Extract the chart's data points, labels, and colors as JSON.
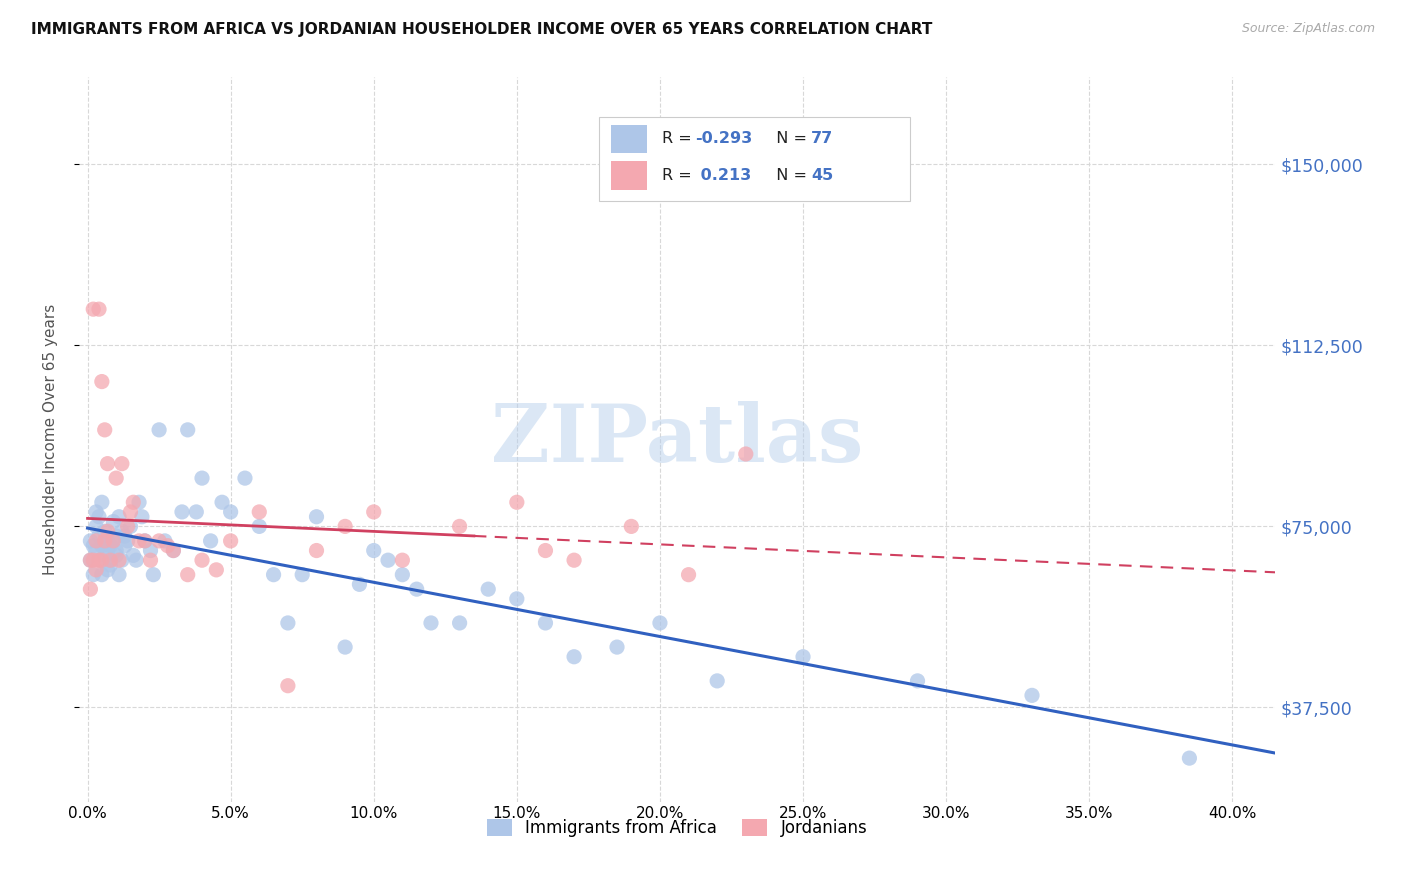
{
  "title": "IMMIGRANTS FROM AFRICA VS JORDANIAN HOUSEHOLDER INCOME OVER 65 YEARS CORRELATION CHART",
  "source": "Source: ZipAtlas.com",
  "ylabel": "Householder Income Over 65 years",
  "ytick_labels": [
    "$37,500",
    "$75,000",
    "$112,500",
    "$150,000"
  ],
  "ytick_values": [
    37500,
    75000,
    112500,
    150000
  ],
  "ylim": [
    18000,
    168000
  ],
  "xlim": [
    -0.003,
    0.415
  ],
  "xtick_positions": [
    0.0,
    0.05,
    0.1,
    0.15,
    0.2,
    0.25,
    0.3,
    0.35,
    0.4
  ],
  "xtick_labels": [
    "0.0%",
    "5.0%",
    "10.0%",
    "15.0%",
    "20.0%",
    "25.0%",
    "30.0%",
    "35.0%",
    "40.0%"
  ],
  "legend_r_africa": "-0.293",
  "legend_n_africa": "77",
  "legend_r_jordan": "0.213",
  "legend_n_jordan": "45",
  "color_africa_fill": "#aec6e8",
  "color_jordan_fill": "#f4a8b0",
  "color_blue_line": "#3060c0",
  "color_pink_line": "#d04060",
  "color_blue_text": "#4472C4",
  "watermark": "ZIPatlas",
  "africa_x": [
    0.001,
    0.001,
    0.002,
    0.002,
    0.003,
    0.003,
    0.003,
    0.004,
    0.004,
    0.004,
    0.005,
    0.005,
    0.005,
    0.006,
    0.006,
    0.006,
    0.007,
    0.007,
    0.007,
    0.008,
    0.008,
    0.008,
    0.009,
    0.009,
    0.01,
    0.01,
    0.01,
    0.011,
    0.011,
    0.012,
    0.012,
    0.013,
    0.013,
    0.014,
    0.015,
    0.016,
    0.017,
    0.018,
    0.019,
    0.02,
    0.022,
    0.023,
    0.025,
    0.027,
    0.03,
    0.033,
    0.035,
    0.038,
    0.04,
    0.043,
    0.047,
    0.05,
    0.055,
    0.06,
    0.065,
    0.07,
    0.075,
    0.08,
    0.09,
    0.095,
    0.1,
    0.105,
    0.11,
    0.115,
    0.12,
    0.13,
    0.14,
    0.15,
    0.16,
    0.17,
    0.185,
    0.2,
    0.22,
    0.25,
    0.29,
    0.33,
    0.385
  ],
  "africa_y": [
    68000,
    72000,
    65000,
    71000,
    75000,
    78000,
    70000,
    73000,
    68000,
    77000,
    80000,
    71000,
    65000,
    69000,
    74000,
    72000,
    66000,
    72000,
    70000,
    67000,
    71000,
    68000,
    72000,
    76000,
    69000,
    73000,
    70000,
    65000,
    77000,
    74000,
    68000,
    71000,
    73000,
    72000,
    75000,
    69000,
    68000,
    80000,
    77000,
    72000,
    70000,
    65000,
    95000,
    72000,
    70000,
    78000,
    95000,
    78000,
    85000,
    72000,
    80000,
    78000,
    85000,
    75000,
    65000,
    55000,
    65000,
    77000,
    50000,
    63000,
    70000,
    68000,
    65000,
    62000,
    55000,
    55000,
    62000,
    60000,
    55000,
    48000,
    50000,
    55000,
    43000,
    48000,
    43000,
    40000,
    27000
  ],
  "jordan_x": [
    0.001,
    0.001,
    0.002,
    0.002,
    0.003,
    0.003,
    0.004,
    0.004,
    0.005,
    0.005,
    0.006,
    0.006,
    0.007,
    0.007,
    0.008,
    0.009,
    0.01,
    0.011,
    0.012,
    0.014,
    0.015,
    0.016,
    0.018,
    0.02,
    0.022,
    0.025,
    0.028,
    0.03,
    0.035,
    0.04,
    0.045,
    0.05,
    0.06,
    0.07,
    0.08,
    0.09,
    0.1,
    0.11,
    0.13,
    0.15,
    0.16,
    0.17,
    0.19,
    0.21,
    0.23
  ],
  "jordan_y": [
    62000,
    68000,
    120000,
    68000,
    72000,
    66000,
    120000,
    68000,
    105000,
    68000,
    95000,
    72000,
    88000,
    74000,
    68000,
    72000,
    85000,
    68000,
    88000,
    75000,
    78000,
    80000,
    72000,
    72000,
    68000,
    72000,
    71000,
    70000,
    65000,
    68000,
    66000,
    72000,
    78000,
    42000,
    70000,
    75000,
    78000,
    68000,
    75000,
    80000,
    70000,
    68000,
    75000,
    65000,
    90000
  ],
  "jordan_line_solid_end_x": 0.135,
  "grid_color": "#d8d8d8"
}
